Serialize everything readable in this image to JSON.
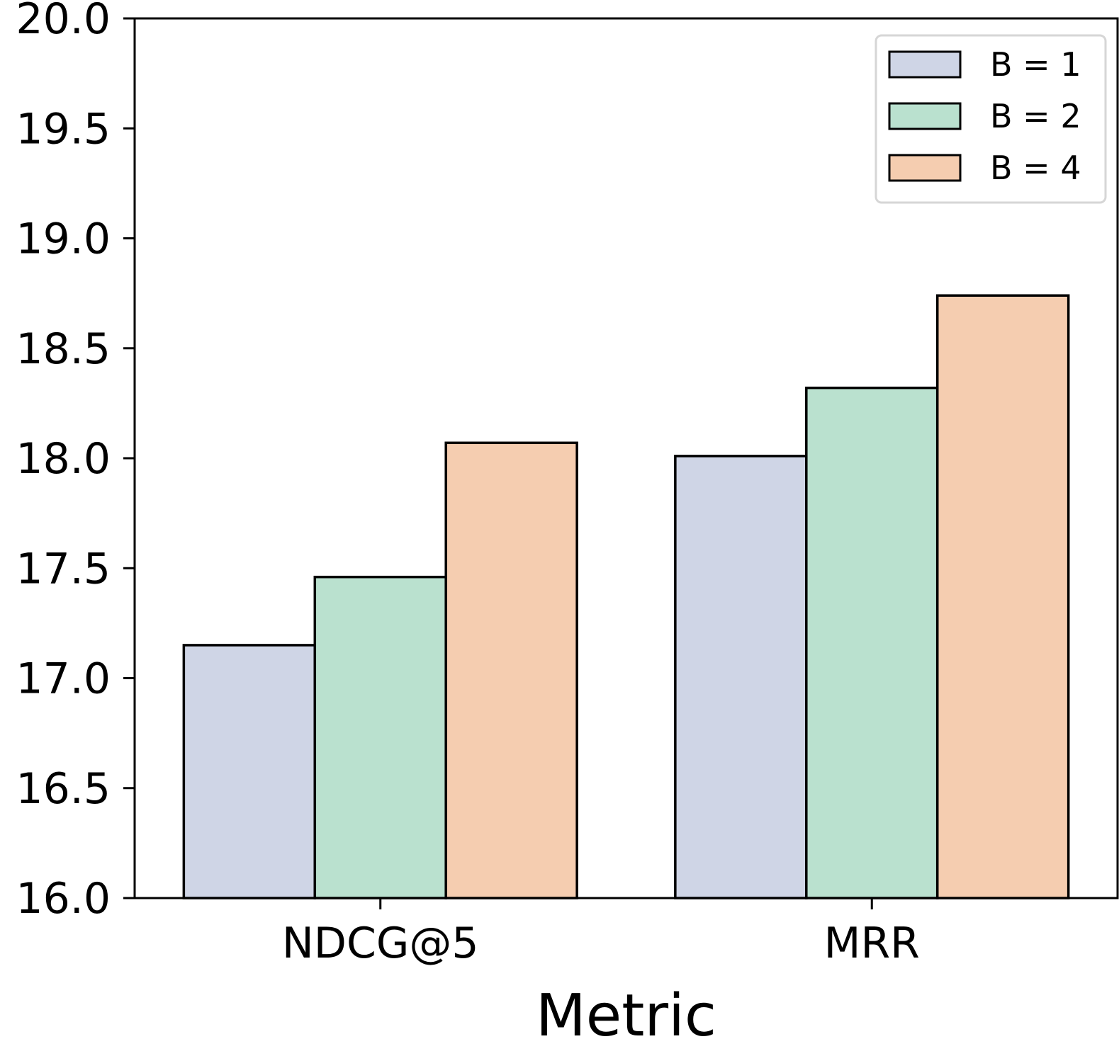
{
  "chart_data": {
    "type": "bar",
    "title": "",
    "xlabel": "Metric",
    "ylabel": "",
    "categories": [
      "NDCG@5",
      "MRR"
    ],
    "series": [
      {
        "name": "B = 1",
        "values": [
          17.15,
          18.01
        ],
        "color": "#cfd5e6"
      },
      {
        "name": "B = 2",
        "values": [
          17.46,
          18.32
        ],
        "color": "#bae1cf"
      },
      {
        "name": "B = 4",
        "values": [
          18.07,
          18.74
        ],
        "color": "#f5cdb0"
      }
    ],
    "ylim": [
      16.0,
      20.0
    ],
    "yticks": [
      "16.0",
      "16.5",
      "17.0",
      "17.5",
      "18.0",
      "18.5",
      "19.0",
      "19.5",
      "20.0"
    ],
    "grid": false,
    "legend_position": "top-right"
  }
}
